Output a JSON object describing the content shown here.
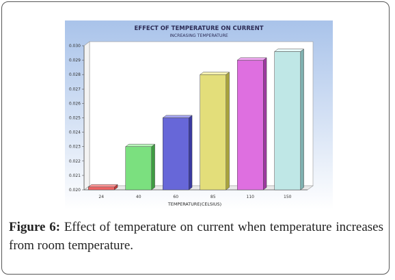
{
  "figure": {
    "caption_label": "Figure 6:",
    "caption_text": " Effect of temperature on current when temperature increases from room temperature."
  },
  "chart_data": {
    "type": "bar",
    "title": "EFFECT OF TEMPERATURE ON CURRENT",
    "subtitle": "INCREASING TEMPERATURE",
    "xlabel": "TEMPERATURE(CELSIUS)",
    "ylabel": "",
    "categories": [
      "24",
      "40",
      "60",
      "85",
      "110",
      "150"
    ],
    "values": [
      0.0202,
      0.023,
      0.025,
      0.028,
      0.029,
      0.0296
    ],
    "ylim": [
      0.02,
      0.03
    ],
    "yticks": [
      "0.020",
      "0.021",
      "0.022",
      "0.023",
      "0.024",
      "0.025",
      "0.026",
      "0.027",
      "0.028",
      "0.029",
      "0.030"
    ],
    "bar_colors": [
      {
        "front": "#f06565",
        "side": "#c13838",
        "top": "#ff9a9a"
      },
      {
        "front": "#7be07f",
        "side": "#3f9b43",
        "top": "#b9f7bb"
      },
      {
        "front": "#6767d8",
        "side": "#3a3aa0",
        "top": "#a7a7f2"
      },
      {
        "front": "#e3de7a",
        "side": "#a9a33d",
        "top": "#f7f3b3"
      },
      {
        "front": "#de6fe0",
        "side": "#9c3a9f",
        "top": "#f2a9f3"
      },
      {
        "front": "#bfe7e6",
        "side": "#7fb0af",
        "top": "#e8fbfa"
      }
    ],
    "grid": false
  }
}
